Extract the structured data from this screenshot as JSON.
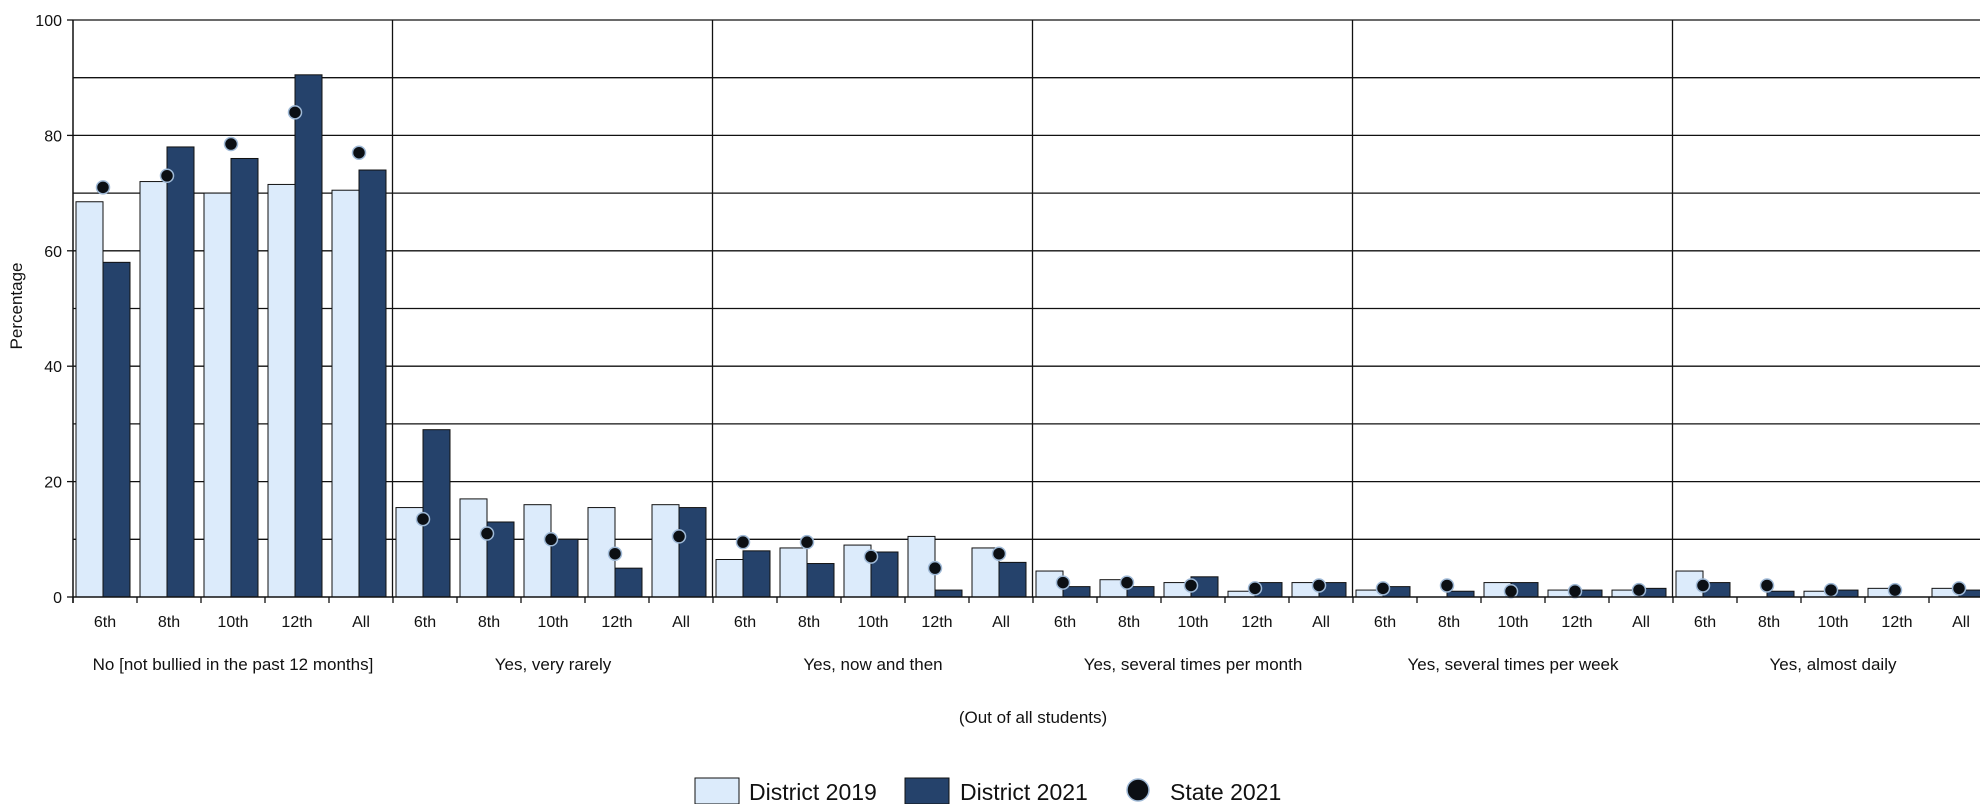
{
  "colors": {
    "district_2019": "#dcebfb",
    "district_2021": "#25426b",
    "state_2021": "#0b0f14",
    "state_2021_outline": "#9fb9d6"
  },
  "chart_data": {
    "type": "bar",
    "ylabel": "Percentage",
    "xlabel": "(Out of all students)",
    "ylim": [
      0,
      100
    ],
    "yticks": [
      0,
      20,
      40,
      60,
      80,
      100
    ],
    "gridlines": [
      10,
      20,
      30,
      40,
      50,
      60,
      70,
      80,
      90,
      100
    ],
    "grades": [
      "6th",
      "8th",
      "10th",
      "12th",
      "All"
    ],
    "groups": [
      "No [not bullied in the past 12 months]",
      "Yes, very rarely",
      "Yes, now and then",
      "Yes, several times per month",
      "Yes, several times per week",
      "Yes, almost daily"
    ],
    "series": [
      {
        "name": "District 2019",
        "values": [
          [
            68.5,
            72,
            70,
            71.5,
            70.5
          ],
          [
            15.5,
            17,
            16,
            15.5,
            16
          ],
          [
            6.5,
            8.5,
            9,
            10.5,
            8.5
          ],
          [
            4.5,
            3,
            2.5,
            1,
            2.5
          ],
          [
            1.2,
            0,
            2.5,
            1.2,
            1.2
          ],
          [
            4.5,
            0,
            1,
            1.5,
            1.5
          ]
        ]
      },
      {
        "name": "District 2021",
        "values": [
          [
            58,
            78,
            76,
            90.5,
            74
          ],
          [
            29,
            13,
            10,
            5,
            15.5
          ],
          [
            8,
            5.8,
            7.8,
            1.2,
            6
          ],
          [
            1.8,
            1.8,
            3.5,
            2.5,
            2.5
          ],
          [
            1.8,
            1,
            2.5,
            1.2,
            1.5
          ],
          [
            2.5,
            1,
            1.2,
            0,
            1.2
          ]
        ]
      },
      {
        "name": "State 2021",
        "values": [
          [
            71,
            73,
            78.5,
            84,
            77
          ],
          [
            13.5,
            11,
            10,
            7.5,
            10.5
          ],
          [
            9.5,
            9.5,
            7,
            5,
            7.5
          ],
          [
            2.5,
            2.5,
            2,
            1.5,
            2
          ],
          [
            1.5,
            2,
            1,
            1,
            1.2
          ],
          [
            2,
            2,
            1.2,
            1.2,
            1.5
          ]
        ]
      }
    ],
    "legend_position": "bottom-center"
  }
}
